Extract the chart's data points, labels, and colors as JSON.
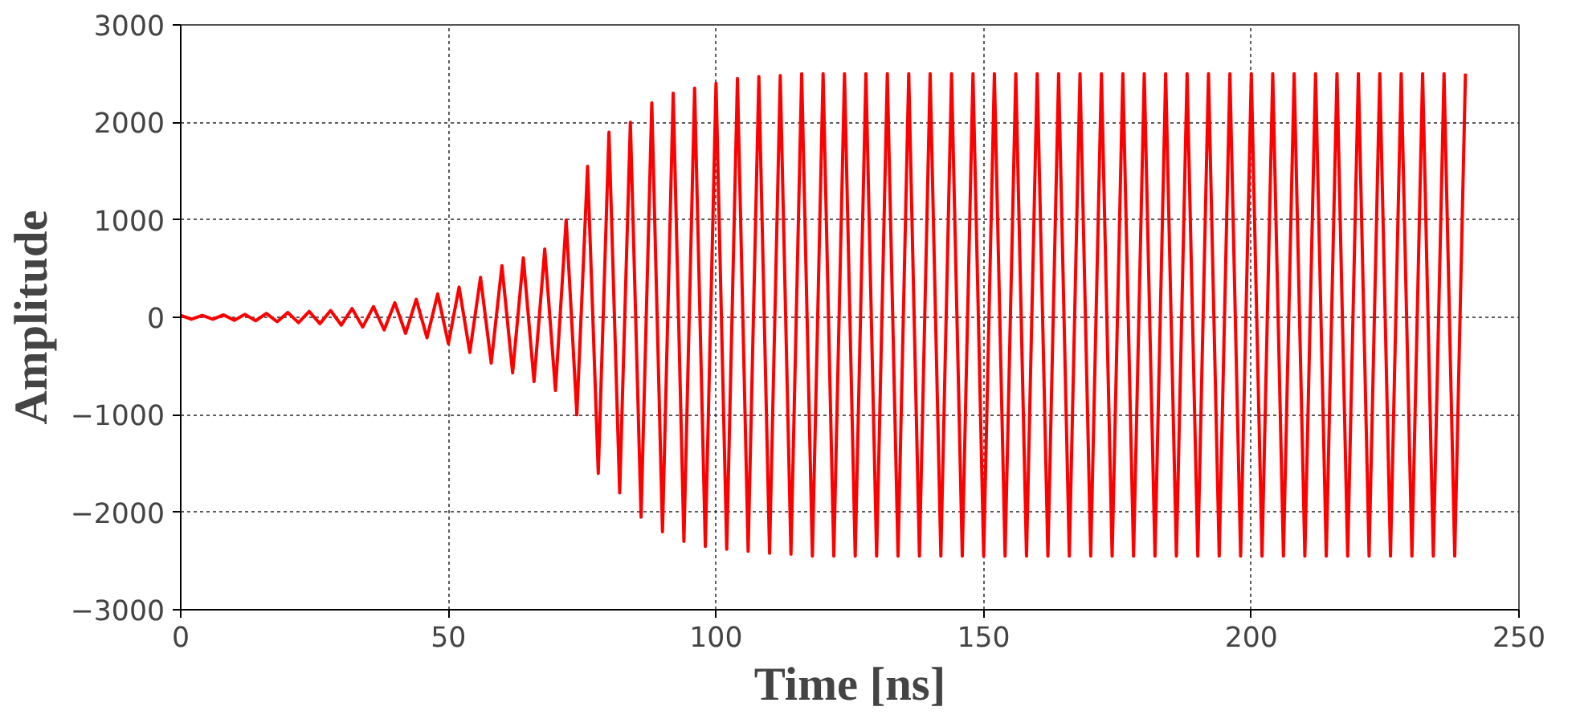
{
  "chart_data": {
    "type": "line",
    "xlabel": "Time [ns]",
    "ylabel": "Amplitude",
    "xlim": [
      0,
      250
    ],
    "ylim": [
      -3000,
      3000
    ],
    "xticks": [
      0,
      50,
      100,
      150,
      200,
      250
    ],
    "yticks": [
      -3000,
      -2000,
      -1000,
      0,
      1000,
      2000,
      3000
    ],
    "grid": true,
    "line_style": "solid",
    "x": [
      0,
      2,
      4,
      6,
      8,
      10,
      12,
      14,
      16,
      18,
      20,
      22,
      24,
      26,
      28,
      30,
      32,
      34,
      36,
      38,
      40,
      42,
      44,
      46,
      48,
      50,
      52,
      54,
      56,
      58,
      60,
      62,
      64,
      66,
      68,
      70,
      72,
      74,
      76,
      78,
      80,
      82,
      84,
      86,
      88,
      90,
      92,
      94,
      96,
      98,
      100,
      102,
      104,
      106,
      108,
      110,
      112,
      114,
      116,
      118,
      120,
      122,
      124,
      126,
      128,
      130,
      132,
      134,
      136,
      138,
      140,
      142,
      144,
      146,
      148,
      150,
      152,
      154,
      156,
      158,
      160,
      162,
      164,
      166,
      168,
      170,
      172,
      174,
      176,
      178,
      180,
      182,
      184,
      186,
      188,
      190,
      192,
      194,
      196,
      198,
      200,
      202,
      204,
      206,
      208,
      210,
      212,
      214,
      216,
      218,
      220,
      222,
      224,
      226,
      228,
      230,
      232,
      234,
      236,
      238,
      240
    ],
    "series": [
      {
        "color": "#ff0000",
        "values": [
          20,
          -20,
          20,
          -20,
          25,
          -30,
          30,
          -35,
          40,
          -45,
          50,
          -55,
          60,
          -65,
          70,
          -80,
          90,
          -100,
          110,
          -130,
          150,
          -165,
          185,
          -210,
          240,
          -270,
          310,
          -360,
          410,
          -470,
          530,
          -570,
          610,
          -660,
          700,
          -750,
          1000,
          -1000,
          1550,
          -1600,
          1900,
          -1800,
          2000,
          -2050,
          2200,
          -2200,
          2300,
          -2300,
          2350,
          -2350,
          2400,
          -2380,
          2450,
          -2400,
          2470,
          -2420,
          2480,
          -2430,
          2500,
          -2450,
          2500,
          -2450,
          2500,
          -2450,
          2500,
          -2450,
          2500,
          -2450,
          2500,
          -2450,
          2500,
          -2450,
          2500,
          -2450,
          2500,
          -2450,
          2500,
          -2450,
          2500,
          -2450,
          2500,
          -2450,
          2500,
          -2450,
          2500,
          -2450,
          2500,
          -2450,
          2500,
          -2450,
          2500,
          -2450,
          2500,
          -2450,
          2500,
          -2450,
          2500,
          -2450,
          2500,
          -2450,
          2500,
          -2450,
          2500,
          -2450,
          2500,
          -2450,
          2500,
          -2450,
          2500,
          -2450,
          2500,
          -2450,
          2500,
          -2450,
          2500,
          -2450,
          2500,
          -2450,
          2500,
          -2450,
          2500
        ]
      }
    ]
  }
}
